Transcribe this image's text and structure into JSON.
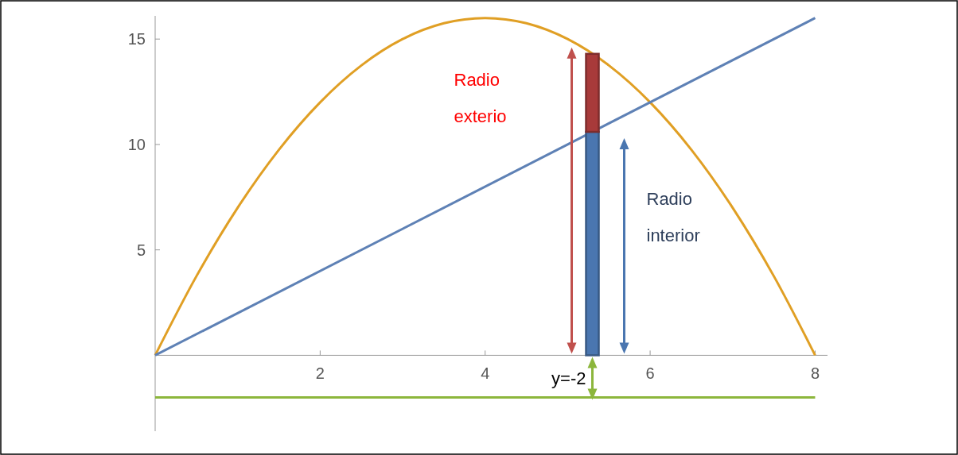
{
  "chart_data": {
    "type": "line",
    "xlim": [
      0,
      8.15
    ],
    "ylim": [
      -3.6,
      16.1
    ],
    "xticks": [
      2,
      4,
      6,
      8
    ],
    "yticks": [
      5,
      10,
      15
    ],
    "grid": false,
    "stacked": true,
    "series": [
      {
        "color": "#e09f24",
        "x": [
          0,
          0.5,
          1,
          1.5,
          2,
          2.5,
          3,
          3.5,
          4,
          4.5,
          5,
          5.5,
          6,
          6.5,
          7,
          7.5,
          8
        ],
        "values": [
          0,
          3.75,
          7,
          9.75,
          12,
          13.75,
          15,
          15.75,
          16,
          15.75,
          15,
          13.75,
          12,
          9.75,
          7,
          3.75,
          0
        ]
      },
      {
        "color": "#5e81b5",
        "x": [
          0,
          8
        ],
        "values": [
          0,
          16
        ]
      },
      {
        "color": "#8cb63c",
        "x": [
          0,
          8
        ],
        "values": [
          -2,
          -2
        ]
      },
      {
        "type": "bar",
        "color": "#4a76b0",
        "x": [
          5.3
        ],
        "values": [
          10.6
        ]
      },
      {
        "type": "bar",
        "color": "#a83a3a",
        "x": [
          5.3
        ],
        "values": [
          3.7
        ]
      }
    ],
    "annotations": [
      "Radio exterio",
      "Radio interior",
      "y=-2"
    ]
  }
}
